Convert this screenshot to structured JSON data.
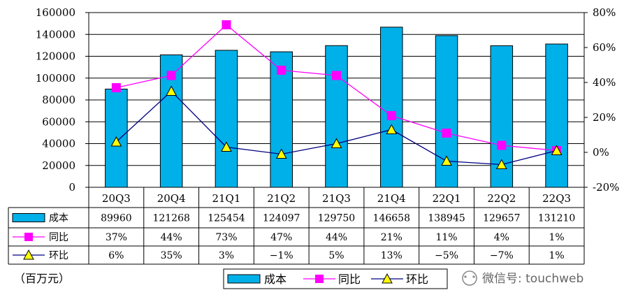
{
  "chart_data": {
    "type": "bar",
    "categories": [
      "20Q3",
      "20Q4",
      "21Q1",
      "21Q2",
      "21Q3",
      "21Q4",
      "22Q1",
      "22Q2",
      "22Q3"
    ],
    "series": [
      {
        "name": "成本",
        "kind": "bar",
        "axis": "left",
        "color": "#00B0E8",
        "values": [
          89960,
          121268,
          125454,
          124097,
          129750,
          146658,
          138945,
          129657,
          131210
        ]
      },
      {
        "name": "同比",
        "kind": "line",
        "axis": "right",
        "color": "#FF00FF",
        "marker": "square",
        "values": [
          37,
          44,
          73,
          47,
          44,
          21,
          11,
          4,
          1
        ]
      },
      {
        "name": "环比",
        "kind": "line",
        "axis": "right",
        "color": "#000080",
        "marker": "triangle",
        "values": [
          6,
          35,
          3,
          -1,
          5,
          13,
          -5,
          -7,
          1
        ]
      }
    ],
    "y_left": {
      "min": 0,
      "max": 160000,
      "step": 20000,
      "ticks": [
        "0",
        "20000",
        "40000",
        "60000",
        "80000",
        "100000",
        "120000",
        "140000",
        "160000"
      ]
    },
    "y_right": {
      "min": -20,
      "max": 80,
      "step": 20,
      "ticks": [
        "-20%",
        "0%",
        "20%",
        "40%",
        "60%",
        "80%"
      ]
    },
    "table": {
      "row_labels": [
        "成本",
        "同比",
        "环比"
      ],
      "rows": [
        [
          "89960",
          "121268",
          "125454",
          "124097",
          "129750",
          "146658",
          "138945",
          "129657",
          "131210"
        ],
        [
          "37%",
          "44%",
          "73%",
          "47%",
          "44%",
          "21%",
          "11%",
          "4%",
          "1%"
        ],
        [
          "6%",
          "35%",
          "3%",
          "−1%",
          "5%",
          "13%",
          "−5%",
          "−7%",
          "1%"
        ]
      ]
    },
    "legend": {
      "position": "bottom",
      "labels": [
        "成本",
        "同比",
        "环比"
      ]
    },
    "unit_label": "（百万元）",
    "watermark": "微信号: touchweb",
    "grid": true
  }
}
